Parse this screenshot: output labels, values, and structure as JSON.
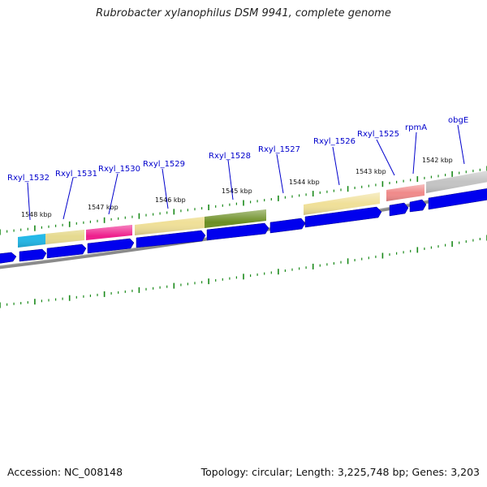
{
  "title": "Rubrobacter xylanophilus DSM 9941, complete genome",
  "footer": {
    "accession": "Accession: NC_008148",
    "summary": "Topology: circular; Length: 3,225,748 bp; Genes: 3,203"
  },
  "scale_labels": [
    "1548 kbp",
    "1547 kbp",
    "1546 kbp",
    "1545 kbp",
    "1544 kbp",
    "1543 kbp",
    "1542 kbp"
  ],
  "gene_labels": [
    "Rxyl_1532",
    "Rxyl_1531",
    "Rxyl_1530",
    "Rxyl_1529",
    "Rxyl_1528",
    "Rxyl_1527",
    "Rxyl_1526",
    "Rxyl_1525",
    "rpmA",
    "obgE"
  ],
  "colors": {
    "cds_arrow": "#0000ee",
    "label_text": "#0000cc",
    "tick": "#1a8a1a",
    "backbone": "#8a8a8a"
  },
  "features": [
    {
      "name": "Rxyl_1532",
      "color": "#22b8e8"
    },
    {
      "name": "Rxyl_1531",
      "color": "#e6da90"
    },
    {
      "name": "Rxyl_1530",
      "color": "#ee1e8c"
    },
    {
      "name": "Rxyl_1529",
      "color": "#f0e098"
    },
    {
      "name": "Rxyl_1528",
      "color": "#6b8e23"
    },
    {
      "name": "Rxyl_1526",
      "color": "#f0e098"
    },
    {
      "name": "Rxyl_1525",
      "color": "#f08a8a"
    },
    {
      "name": "rpmA",
      "color": "#f08a8a"
    },
    {
      "name": "obgE",
      "color": "#c4c4c4"
    }
  ]
}
